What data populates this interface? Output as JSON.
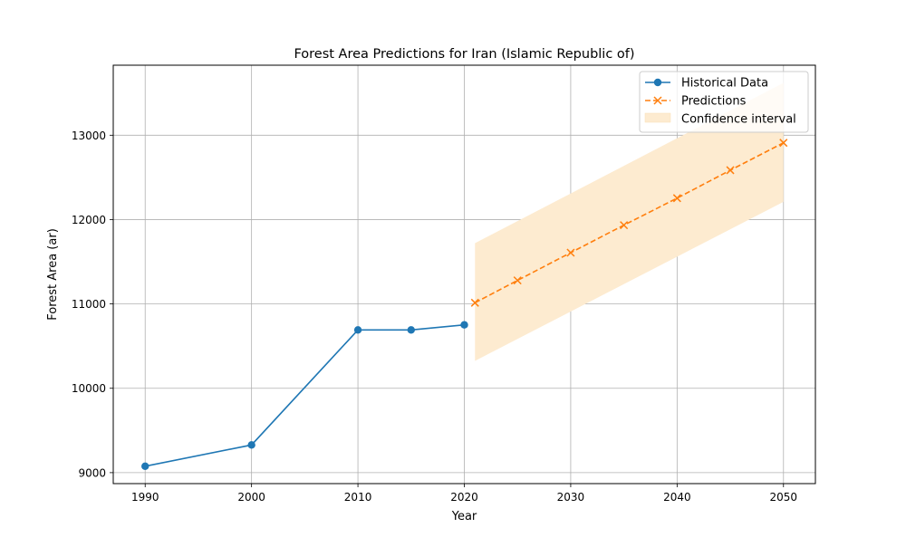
{
  "chart_data": {
    "type": "line",
    "title": "Forest Area Predictions for Iran (Islamic Republic of)",
    "xlabel": "Year",
    "ylabel": "Forest Area (ar)",
    "xlim": [
      1987,
      2053
    ],
    "ylim": [
      8870,
      13830
    ],
    "x_ticks": [
      1990,
      2000,
      2010,
      2020,
      2030,
      2040,
      2050
    ],
    "y_ticks": [
      9000,
      10000,
      11000,
      12000,
      13000
    ],
    "grid": true,
    "legend_position": "top-right",
    "series": [
      {
        "name": "Historical Data",
        "style": "solid",
        "marker": "circle",
        "color": "#1f77b4",
        "x": [
          1990,
          2000,
          2010,
          2015,
          2020
        ],
        "y": [
          9076,
          9328,
          10692,
          10692,
          10752
        ]
      },
      {
        "name": "Predictions",
        "style": "dashed",
        "marker": "x",
        "color": "#ff7f0e",
        "x": [
          2021,
          2025,
          2030,
          2035,
          2040,
          2045,
          2050
        ],
        "y": [
          11014,
          11279,
          11608,
          11934,
          12254,
          12585,
          12910
        ]
      }
    ],
    "confidence_interval": {
      "name": "Confidence interval",
      "color": "#fdebd0",
      "x": [
        2021,
        2050
      ],
      "lower": [
        10325,
        12210
      ],
      "upper": [
        11720,
        13620
      ]
    }
  }
}
